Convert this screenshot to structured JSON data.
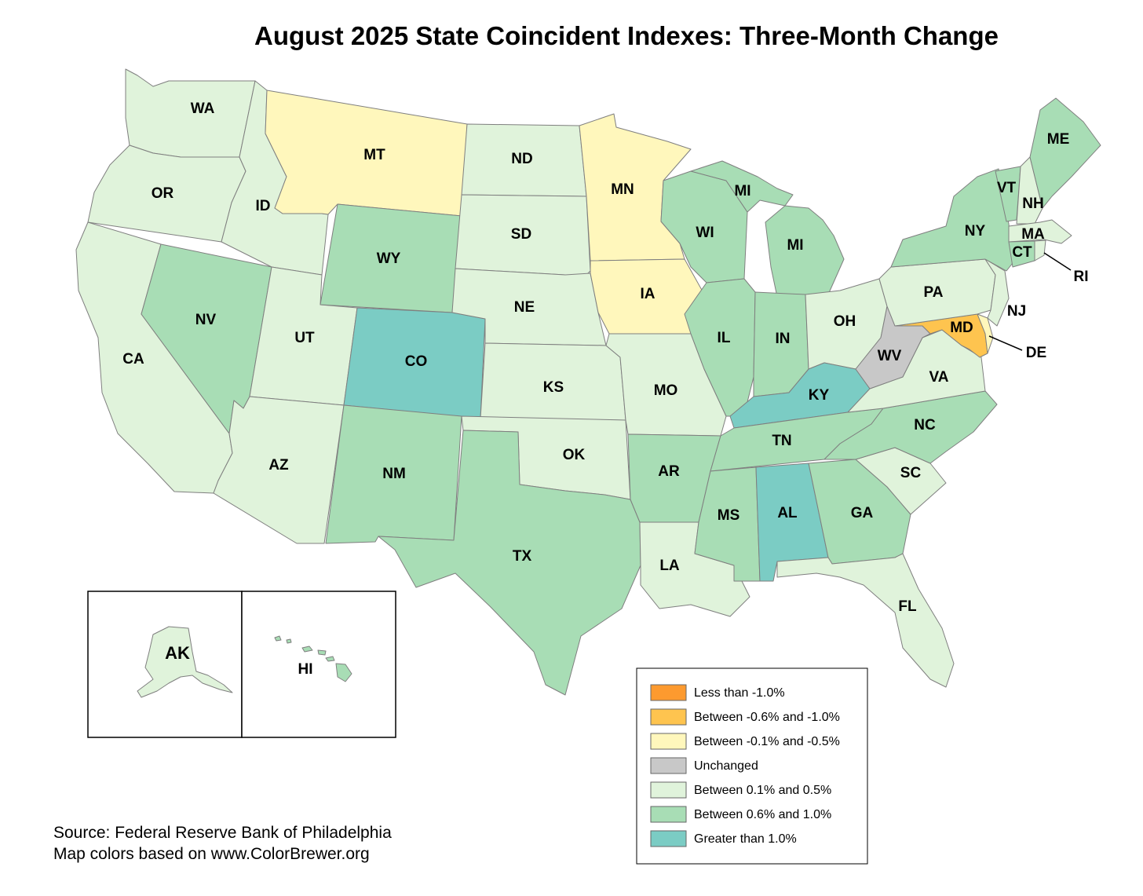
{
  "title": "August 2025 State Coincident Indexes: Three-Month Change",
  "source_line1": "Source: Federal Reserve Bank of Philadelphia",
  "source_line2": "Map colors based on www.ColorBrewer.org",
  "categories": {
    "lt_-1.0": {
      "label": "Less than -1.0%",
      "color": "#fd9a2f"
    },
    "-0.6_-1.0": {
      "label": "Between -0.6% and -1.0%",
      "color": "#fec44f"
    },
    "-0.1_-0.5": {
      "label": "Between -0.1% and -0.5%",
      "color": "#fff7bc"
    },
    "unch": {
      "label": "Unchanged",
      "color": "#c8c8c8"
    },
    "0.1_0.5": {
      "label": "Between 0.1% and 0.5%",
      "color": "#e0f3db"
    },
    "0.6_1.0": {
      "label": "Between 0.6% and 1.0%",
      "color": "#a8ddb5"
    },
    "gt_1.0": {
      "label": "Greater than 1.0%",
      "color": "#7bccc4"
    }
  },
  "legend_order": [
    "lt_-1.0",
    "-0.6_-1.0",
    "-0.1_-0.5",
    "unch",
    "0.1_0.5",
    "0.6_1.0",
    "gt_1.0"
  ],
  "states": {
    "WA": "0.1_0.5",
    "OR": "0.1_0.5",
    "CA": "0.1_0.5",
    "ID": "0.1_0.5",
    "NV": "0.6_1.0",
    "UT": "0.1_0.5",
    "AZ": "0.1_0.5",
    "MT": "-0.1_-0.5",
    "WY": "0.6_1.0",
    "CO": "gt_1.0",
    "NM": "0.6_1.0",
    "ND": "0.1_0.5",
    "SD": "0.1_0.5",
    "NE": "0.1_0.5",
    "KS": "0.1_0.5",
    "OK": "0.1_0.5",
    "TX": "0.6_1.0",
    "MN": "-0.1_-0.5",
    "IA": "-0.1_-0.5",
    "MO": "0.1_0.5",
    "AR": "0.6_1.0",
    "LA": "0.1_0.5",
    "WI": "0.6_1.0",
    "IL": "0.6_1.0",
    "MI": "0.6_1.0",
    "IN": "0.6_1.0",
    "OH": "0.1_0.5",
    "KY": "gt_1.0",
    "TN": "0.6_1.0",
    "MS": "0.6_1.0",
    "AL": "gt_1.0",
    "GA": "0.6_1.0",
    "FL": "0.1_0.5",
    "SC": "0.1_0.5",
    "NC": "0.6_1.0",
    "VA": "0.1_0.5",
    "WV": "unch",
    "MD": "-0.6_-1.0",
    "DE": "-0.1_-0.5",
    "PA": "0.1_0.5",
    "NJ": "0.1_0.5",
    "NY": "0.6_1.0",
    "CT": "0.6_1.0",
    "RI": "0.1_0.5",
    "MA": "0.1_0.5",
    "VT": "0.6_1.0",
    "NH": "0.1_0.5",
    "ME": "0.6_1.0",
    "AK": "0.1_0.5",
    "HI": "0.6_1.0"
  },
  "labels": {
    "WA": "WA",
    "OR": "OR",
    "CA": "CA",
    "ID": "ID",
    "NV": "NV",
    "UT": "UT",
    "AZ": "AZ",
    "MT": "MT",
    "WY": "WY",
    "CO": "CO",
    "NM": "NM",
    "ND": "ND",
    "SD": "SD",
    "NE": "NE",
    "KS": "KS",
    "OK": "OK",
    "TX": "TX",
    "MN": "MN",
    "IA": "IA",
    "MO": "MO",
    "AR": "AR",
    "LA": "LA",
    "WI": "WI",
    "IL": "IL",
    "MI": "MI",
    "MI_UP": "MI",
    "IN": "IN",
    "OH": "OH",
    "KY": "KY",
    "TN": "TN",
    "MS": "MS",
    "AL": "AL",
    "GA": "GA",
    "FL": "FL",
    "SC": "SC",
    "NC": "NC",
    "VA": "VA",
    "WV": "WV",
    "MD": "MD",
    "DE": "DE",
    "PA": "PA",
    "NJ": "NJ",
    "NY": "NY",
    "CT": "CT",
    "RI": "RI",
    "MA": "MA",
    "VT": "VT",
    "NH": "NH",
    "ME": "ME",
    "AK": "AK",
    "HI": "HI"
  }
}
